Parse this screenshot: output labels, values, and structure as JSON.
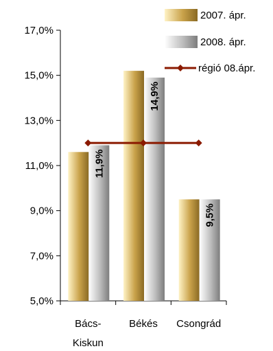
{
  "chart_data": {
    "type": "bar",
    "categories": [
      [
        "Bács-",
        "Kiskun"
      ],
      [
        "Békés"
      ],
      [
        "Csongrád"
      ]
    ],
    "series": [
      {
        "name": "2007. ápr.",
        "values": [
          11.6,
          15.2,
          9.5
        ],
        "color": "#c9a24a"
      },
      {
        "name": "2008. ápr.",
        "values": [
          11.9,
          14.9,
          9.5
        ],
        "color": "#bdbdbd",
        "data_labels": [
          "11,9%",
          "14,9%",
          "9,5%"
        ]
      }
    ],
    "line_series": {
      "name": "régió 08.ápr.",
      "values": [
        12.0,
        12.0,
        12.0
      ],
      "color": "#8b1a00"
    },
    "ylim": [
      5,
      17
    ],
    "yticks": [
      5,
      7,
      9,
      11,
      13,
      15,
      17
    ],
    "ytick_labels": [
      "5,0%",
      "7,0%",
      "9,0%",
      "11,0%",
      "13,0%",
      "15,0%",
      "17,0%"
    ],
    "legend_position": "top-right",
    "grid": false
  }
}
